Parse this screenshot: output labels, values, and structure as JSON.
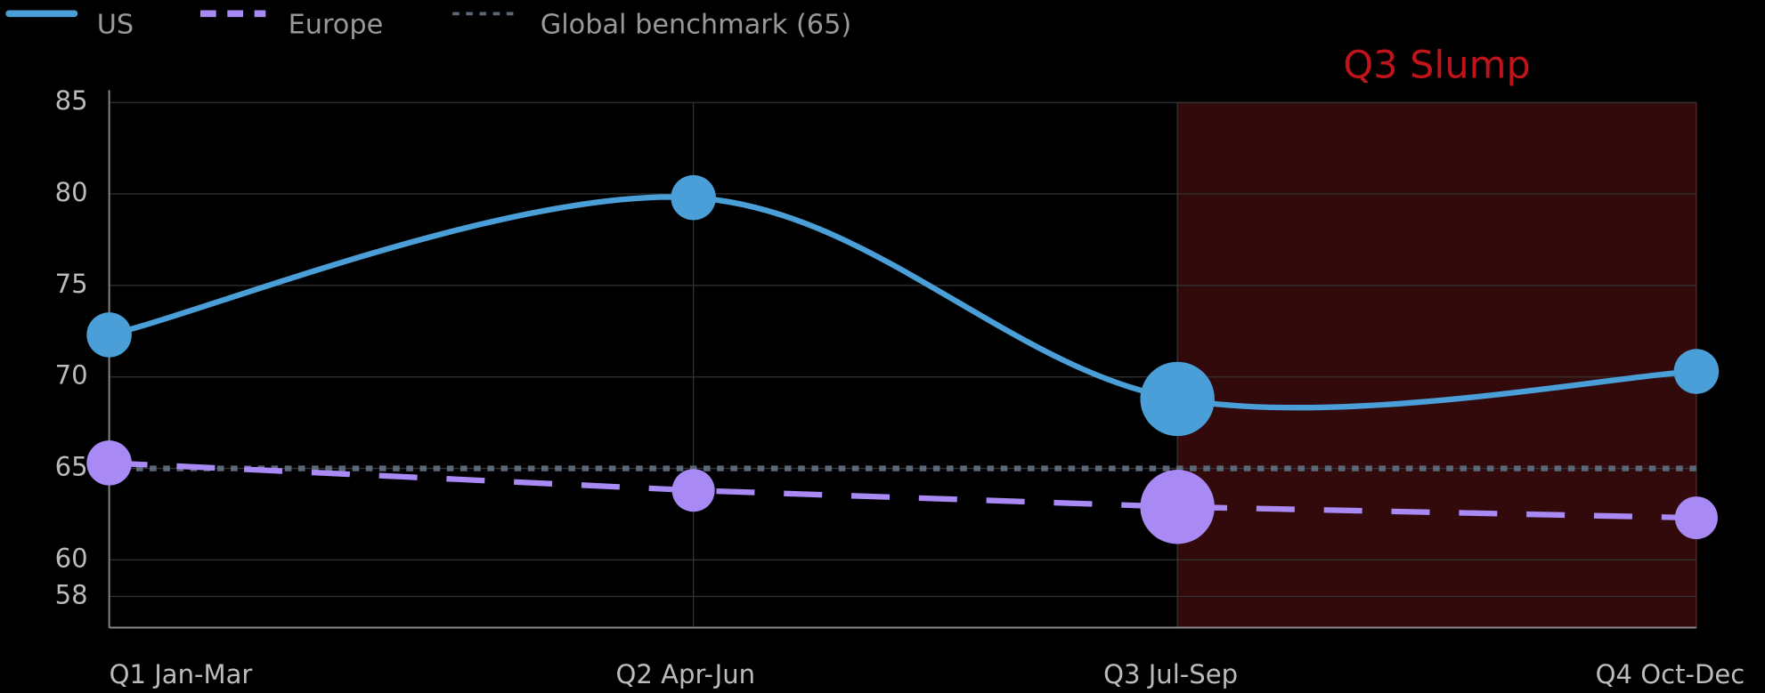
{
  "chart_data": {
    "type": "line",
    "categories": [
      "Q1 Jan-Mar",
      "Q2 Apr-Jun",
      "Q3 Jul-Sep",
      "Q4 Oct-Dec"
    ],
    "series": [
      {
        "name": "US",
        "color": "#4a9fd8",
        "line_style": "solid",
        "smooth": true,
        "values": [
          72.3,
          79.8,
          68.8,
          70.3
        ],
        "sizes": [
          20,
          20,
          33,
          20
        ]
      },
      {
        "name": "Europe",
        "color": "#a98af5",
        "line_style": "dashed",
        "smooth": false,
        "values": [
          65.3,
          63.8,
          62.9,
          62.3
        ],
        "sizes": [
          20,
          19,
          33,
          19
        ]
      }
    ],
    "benchmark": {
      "name": "Global benchmark (65)",
      "value": 65,
      "color": "#5a6878"
    },
    "highlight": {
      "label": "Q3 Slump",
      "from": "Q3 Jul-Sep",
      "to": "Q4 Oct-Dec",
      "color": "#330a0c",
      "label_color": "#c0141a"
    },
    "ylim": [
      56.3,
      85
    ],
    "yticks": [
      58,
      60,
      65,
      70,
      75,
      80,
      85
    ],
    "grid": true
  }
}
